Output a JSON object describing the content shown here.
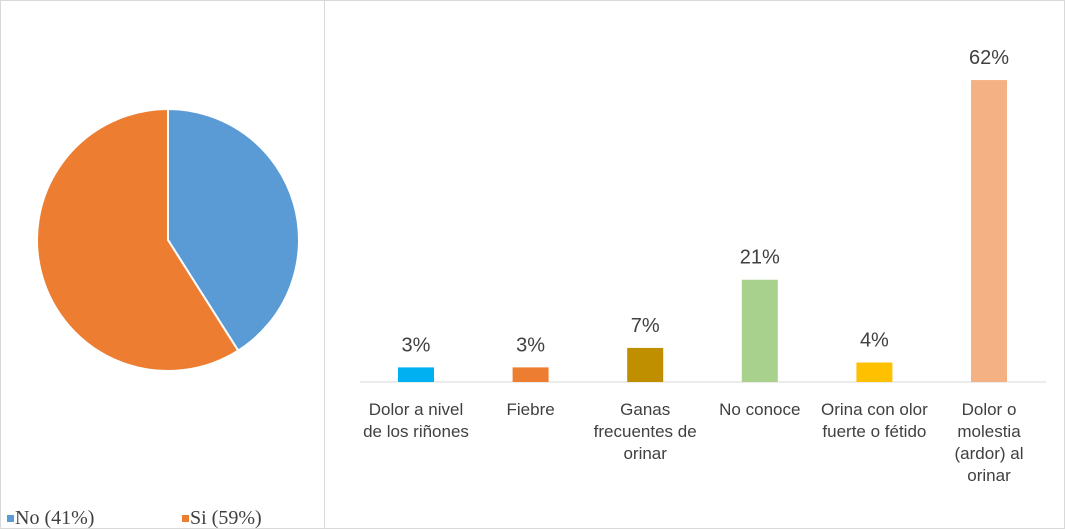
{
  "chart_data": [
    {
      "type": "pie",
      "series": [
        {
          "name": "No (41%)",
          "color": "#5b9bd5",
          "values": [
            41
          ]
        },
        {
          "name": "Si (59%)",
          "color": "#ed7d31",
          "values": [
            59
          ]
        }
      ],
      "legend": "bottom"
    },
    {
      "type": "bar",
      "categories": [
        "Dolor a nivel de los riñones",
        "Fiebre",
        "Ganas frecuentes de orinar",
        "No conoce",
        "Orina con olor fuerte o fétido",
        "Dolor o molestia (ardor) al orinar"
      ],
      "values": [
        3,
        3,
        7,
        21,
        4,
        62
      ],
      "value_labels": [
        "3%",
        "3%",
        "7%",
        "21%",
        "4%",
        "62%"
      ],
      "colors": [
        "#00b0f0",
        "#ed7d31",
        "#bf8f00",
        "#a9d18e",
        "#ffc000",
        "#f4b183"
      ]
    }
  ]
}
